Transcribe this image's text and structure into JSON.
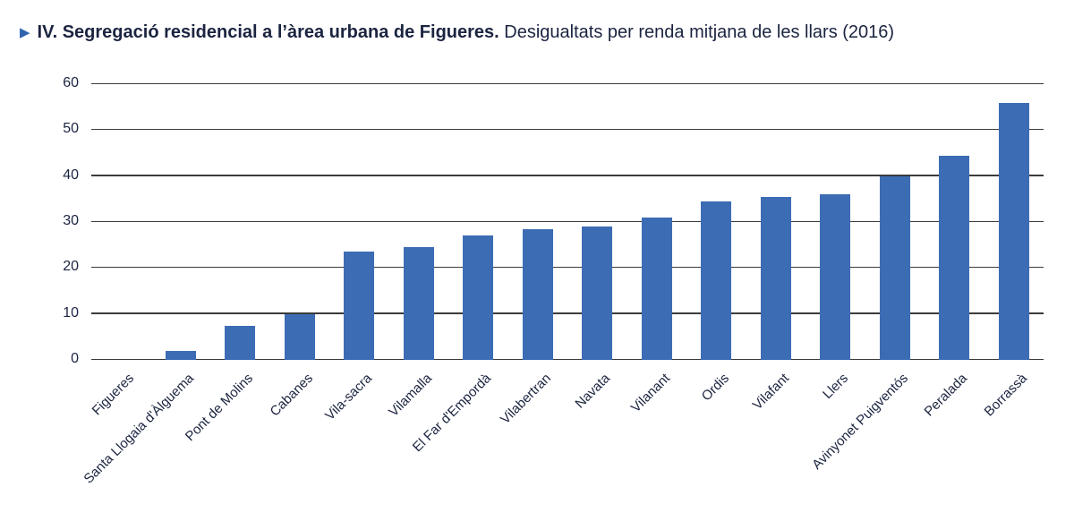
{
  "title": {
    "bullet": "▶",
    "bold": "IV. Segregació residencial a l’àrea urbana de Figueres.",
    "regular": "Desigualtats per renda mitjana de les llars (2016)"
  },
  "colors": {
    "bar": "#3c6cb4",
    "grid": "#3b3b3b",
    "text": "#1b2440",
    "accent": "#2e64ad"
  },
  "chart_data": {
    "type": "bar",
    "title": "IV. Segregació residencial a l’àrea urbana de Figueres. Desigualtats per renda mitjana de les llars (2016)",
    "categories": [
      "Figueres",
      "Santa Llogaia d'Àlguema",
      "Pont de Molins",
      "Cabanes",
      "Vila-sacra",
      "Vilamalla",
      "El Far d'Empordà",
      "Vilabertran",
      "Navata",
      "Vilanant",
      "Ordis",
      "Vilafant",
      "Llers",
      "Avinyonet Puigventós",
      "Peralada",
      "Borrassà"
    ],
    "values": [
      0,
      2,
      7.5,
      10,
      23.5,
      24.5,
      27,
      28.5,
      29,
      31,
      34.5,
      35.5,
      36,
      40,
      44.5,
      56
    ],
    "xlabel": "",
    "ylabel": "",
    "ylim": [
      0,
      60
    ],
    "yticks": [
      0,
      10,
      20,
      30,
      40,
      50,
      60
    ],
    "grid": true,
    "legend_position": "none"
  }
}
